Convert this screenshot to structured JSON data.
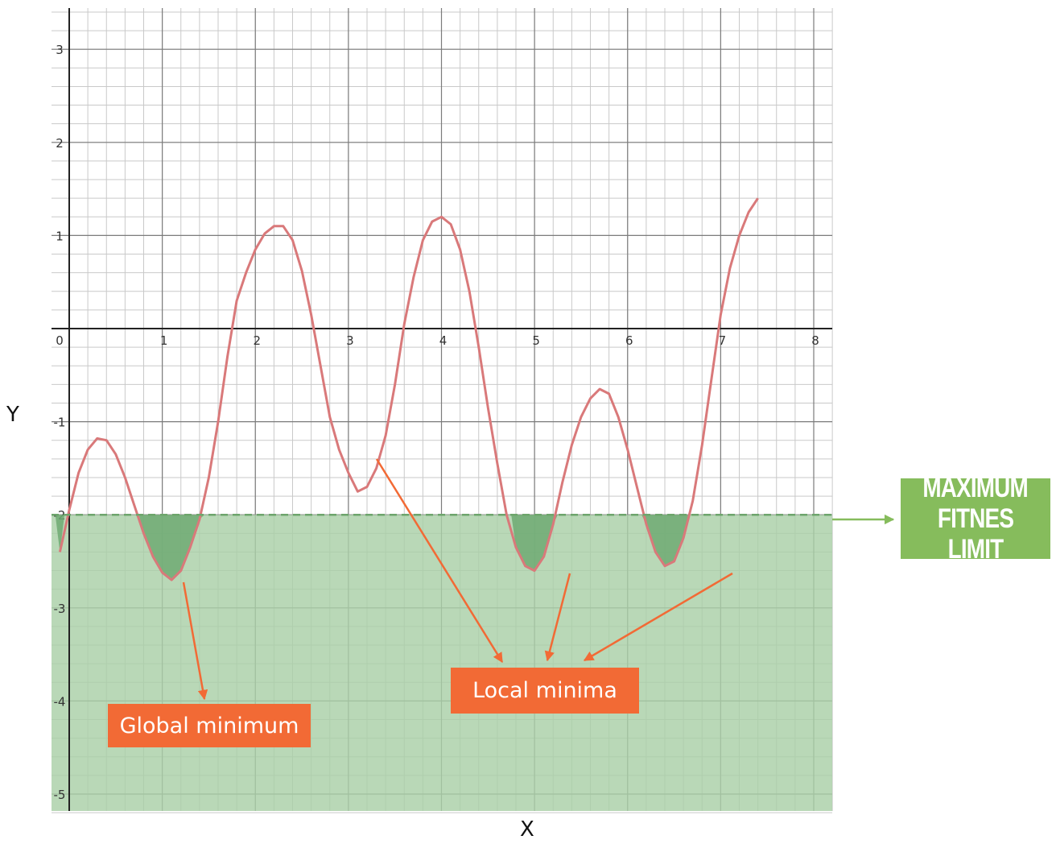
{
  "chart_data": {
    "type": "line",
    "xlabel": "X",
    "ylabel": "Y",
    "xlim": [
      -0.1,
      8.2
    ],
    "ylim": [
      -5.2,
      3.5
    ],
    "x_ticks": [
      1,
      2,
      3,
      4,
      5,
      6,
      7,
      8
    ],
    "y_ticks": [
      3,
      2,
      1,
      -1,
      -2,
      -3,
      -4,
      -5
    ],
    "origin_label": "0",
    "grid": true,
    "series": [
      {
        "color": "#d9797a",
        "points": [
          [
            -0.1,
            -2.4
          ],
          [
            0.0,
            -1.95
          ],
          [
            0.1,
            -1.55
          ],
          [
            0.2,
            -1.3
          ],
          [
            0.3,
            -1.18
          ],
          [
            0.4,
            -1.2
          ],
          [
            0.5,
            -1.35
          ],
          [
            0.6,
            -1.6
          ],
          [
            0.7,
            -1.9
          ],
          [
            0.8,
            -2.2
          ],
          [
            0.9,
            -2.45
          ],
          [
            1.0,
            -2.62
          ],
          [
            1.1,
            -2.7
          ],
          [
            1.2,
            -2.6
          ],
          [
            1.3,
            -2.35
          ],
          [
            1.4,
            -2.05
          ],
          [
            1.5,
            -1.6
          ],
          [
            1.6,
            -1.0
          ],
          [
            1.7,
            -0.3
          ],
          [
            1.8,
            0.3
          ],
          [
            1.9,
            0.6
          ],
          [
            2.0,
            0.85
          ],
          [
            2.1,
            1.02
          ],
          [
            2.2,
            1.1
          ],
          [
            2.3,
            1.1
          ],
          [
            2.4,
            0.95
          ],
          [
            2.5,
            0.62
          ],
          [
            2.6,
            0.15
          ],
          [
            2.7,
            -0.4
          ],
          [
            2.8,
            -0.95
          ],
          [
            2.9,
            -1.3
          ],
          [
            3.0,
            -1.55
          ],
          [
            3.1,
            -1.75
          ],
          [
            3.2,
            -1.7
          ],
          [
            3.3,
            -1.5
          ],
          [
            3.4,
            -1.15
          ],
          [
            3.5,
            -0.6
          ],
          [
            3.6,
            0.05
          ],
          [
            3.7,
            0.55
          ],
          [
            3.8,
            0.95
          ],
          [
            3.9,
            1.15
          ],
          [
            4.0,
            1.2
          ],
          [
            4.1,
            1.12
          ],
          [
            4.2,
            0.85
          ],
          [
            4.3,
            0.4
          ],
          [
            4.4,
            -0.2
          ],
          [
            4.5,
            -0.85
          ],
          [
            4.6,
            -1.45
          ],
          [
            4.7,
            -2.0
          ],
          [
            4.8,
            -2.35
          ],
          [
            4.9,
            -2.55
          ],
          [
            5.0,
            -2.6
          ],
          [
            5.1,
            -2.45
          ],
          [
            5.2,
            -2.1
          ],
          [
            5.3,
            -1.65
          ],
          [
            5.4,
            -1.25
          ],
          [
            5.5,
            -0.95
          ],
          [
            5.6,
            -0.75
          ],
          [
            5.7,
            -0.65
          ],
          [
            5.8,
            -0.7
          ],
          [
            5.9,
            -0.95
          ],
          [
            6.0,
            -1.3
          ],
          [
            6.1,
            -1.7
          ],
          [
            6.2,
            -2.1
          ],
          [
            6.3,
            -2.4
          ],
          [
            6.4,
            -2.55
          ],
          [
            6.5,
            -2.5
          ],
          [
            6.6,
            -2.25
          ],
          [
            6.7,
            -1.85
          ],
          [
            6.8,
            -1.25
          ],
          [
            6.9,
            -0.55
          ],
          [
            7.0,
            0.15
          ],
          [
            7.1,
            0.65
          ],
          [
            7.2,
            1.0
          ],
          [
            7.3,
            1.25
          ],
          [
            7.4,
            1.4
          ]
        ]
      }
    ],
    "fitness_limit": -2,
    "annotations": {
      "global": "Global minimum",
      "local": "Local minima",
      "limit_line1": "MAXIMUM",
      "limit_line2": "FITNES LIMIT"
    }
  },
  "colors": {
    "curve": "#d9797a",
    "region_fill": "#a9cfa7",
    "basin_fill": "#6faa73",
    "limit_line": "#6da56c",
    "callout": "#f26a35",
    "limit_box": "#86bc5c",
    "arrow_orange": "#f26a35",
    "arrow_green": "#86bc5c"
  }
}
